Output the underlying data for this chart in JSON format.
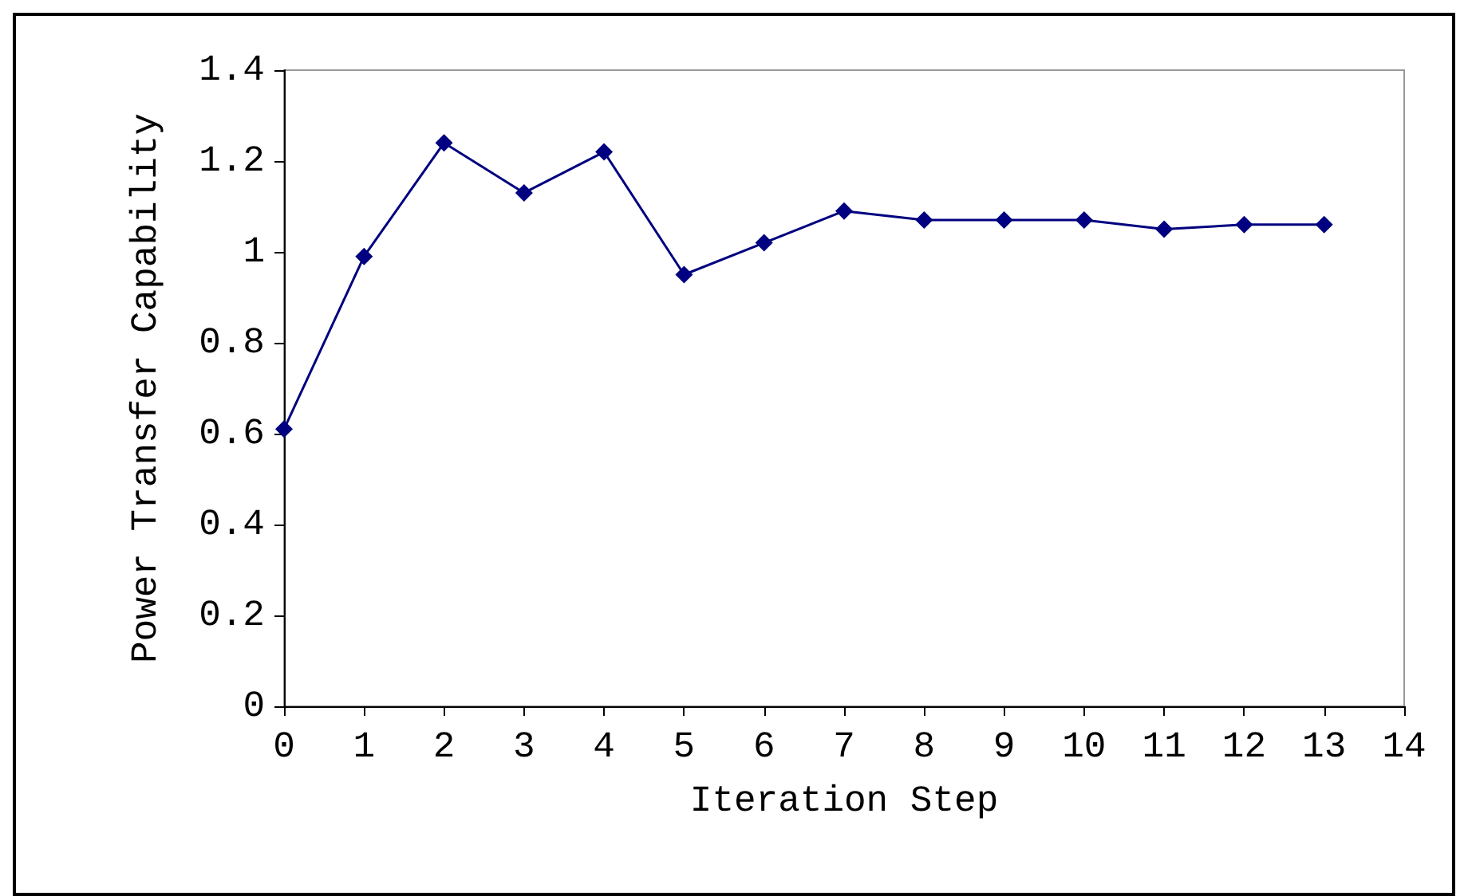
{
  "chart_data": {
    "type": "line",
    "xlabel": "Iteration Step",
    "ylabel": "Power Transfer Capability",
    "x": [
      0,
      1,
      2,
      3,
      4,
      5,
      6,
      7,
      8,
      9,
      10,
      11,
      12,
      13
    ],
    "series": [
      {
        "color": "#000080",
        "values": [
          0.61,
          0.99,
          1.24,
          1.13,
          1.22,
          0.95,
          1.02,
          1.09,
          1.07,
          1.07,
          1.07,
          1.05,
          1.06,
          1.06
        ]
      }
    ],
    "xlim": [
      0,
      14
    ],
    "xticks": [
      0,
      1,
      2,
      3,
      4,
      5,
      6,
      7,
      8,
      9,
      10,
      11,
      12,
      13,
      14
    ],
    "ylim": [
      0,
      1.4
    ],
    "yticks": [
      0,
      0.2,
      0.4,
      0.6,
      0.8,
      1,
      1.2,
      1.4
    ],
    "grid": false,
    "marker": "diamond",
    "line_style": "solid"
  }
}
